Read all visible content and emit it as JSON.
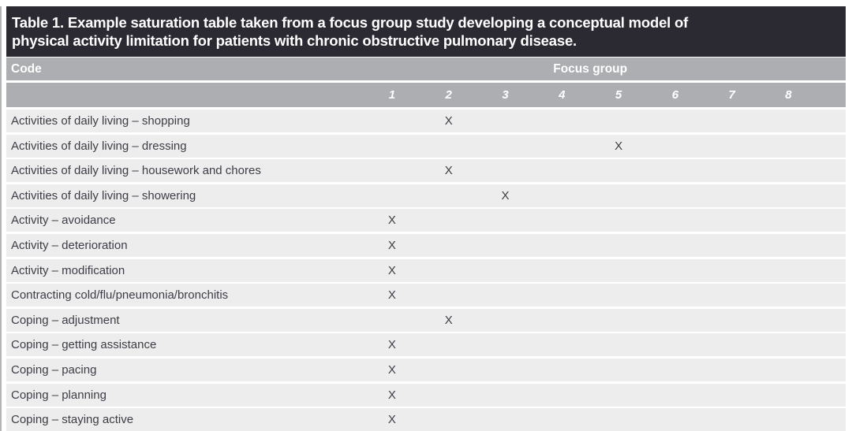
{
  "table": {
    "title_lines": [
      "Table 1. Example saturation table taken from a focus group study developing a conceptual model of",
      "physical activity limitation for patients with chronic obstructive pulmonary disease."
    ],
    "code_header": "Code",
    "group_header": "Focus group",
    "group_columns": [
      "1",
      "2",
      "3",
      "4",
      "5",
      "6",
      "7",
      "8"
    ],
    "mark_symbol": "X",
    "rows": [
      {
        "label": "Activities of daily living – shopping",
        "x_groups": [
          2
        ]
      },
      {
        "label": "Activities of daily living – dressing",
        "x_groups": [
          5
        ]
      },
      {
        "label": "Activities of daily living – housework and chores",
        "x_groups": [
          2
        ]
      },
      {
        "label": "Activities of daily living – showering",
        "x_groups": [
          3
        ]
      },
      {
        "label": "Activity – avoidance",
        "x_groups": [
          1
        ]
      },
      {
        "label": "Activity – deterioration",
        "x_groups": [
          1
        ]
      },
      {
        "label": "Activity – modification",
        "x_groups": [
          1
        ]
      },
      {
        "label": "Contracting cold/flu/pneumonia/bronchitis",
        "x_groups": [
          1
        ]
      },
      {
        "label": "Coping – adjustment",
        "x_groups": [
          2
        ]
      },
      {
        "label": "Coping – getting assistance",
        "x_groups": [
          1
        ]
      },
      {
        "label": "Coping – pacing",
        "x_groups": [
          1
        ]
      },
      {
        "label": "Coping – planning",
        "x_groups": [
          1
        ]
      },
      {
        "label": "Coping – staying active",
        "x_groups": [
          1
        ]
      }
    ],
    "colors": {
      "title_bar_bg": "#2b2a32",
      "header_bg": "#acaeb1",
      "row_bg": "#ededee",
      "text_dark": "#3d3d46",
      "header_text": "#ffffff"
    }
  }
}
